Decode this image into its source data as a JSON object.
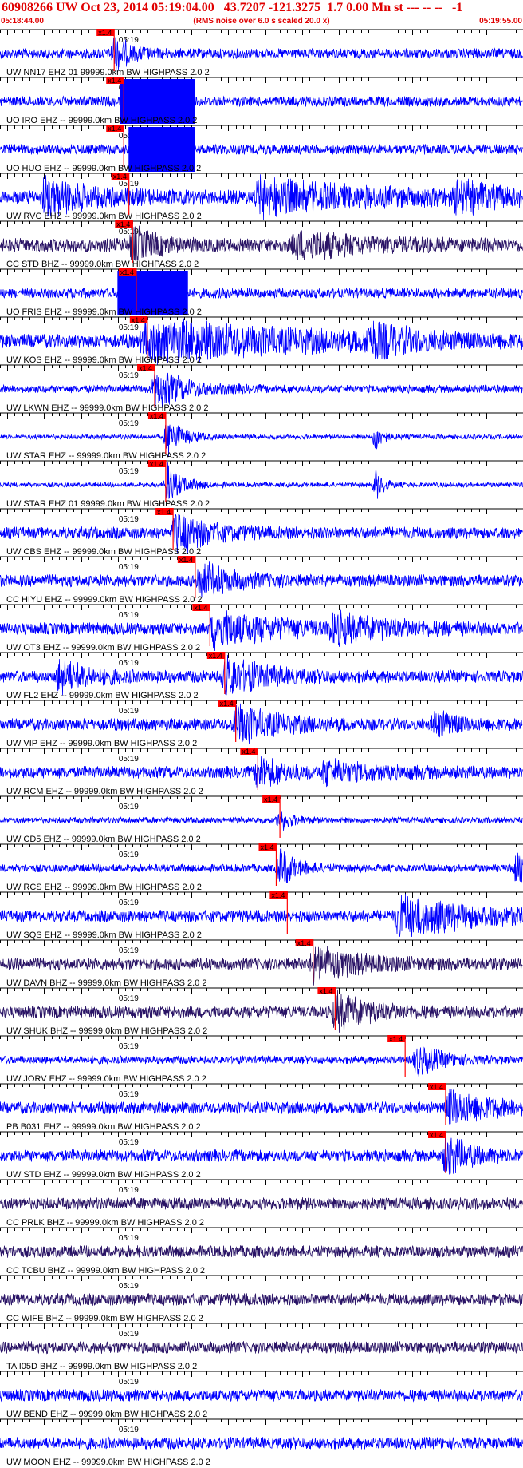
{
  "header": {
    "title": "60908266 UW Oct 23, 2014 05:19:04.00   43.7207 -121.3275  1.7 0.00 Mn st --- -- --   -1",
    "start_time": "05:18:44.00",
    "end_time": "05:19:55.00",
    "note": "(RMS noise over 6.0 s scaled 20.0 x)"
  },
  "chart_data": {
    "type": "seismogram-record-section",
    "time_axis": {
      "start": "05:18:44.00",
      "end": "05:19:55.00",
      "duration_s": 71,
      "minute_label": "05:19",
      "minute_offset_s": 16
    },
    "pick_label": "x1.4",
    "colors": {
      "trace": "#0000ff",
      "trace_dark": "#2a1466",
      "pick": "#ff0000",
      "grid": "#000000"
    },
    "traces": [
      {
        "label": "UW NN17 EHZ 01 99999.0km BW  HIGHPASS  2.0  2",
        "pick_s": 15.5,
        "color": "#0000ff",
        "noise": 0.25,
        "events": [
          [
            15.5,
            2,
            0.9
          ]
        ],
        "clipped": []
      },
      {
        "label": "UO IRO EHZ -- 99999.0km BW  HIGHPASS  2.0  2",
        "pick_s": 16.8,
        "color": "#0000ff",
        "noise": 0.25,
        "events": [],
        "clipped": [
          [
            16.3,
            26.5
          ]
        ]
      },
      {
        "label": "UO HUO EHZ -- 99999.0km BW  HIGHPASS  2.0  2",
        "pick_s": 16.8,
        "color": "#0000ff",
        "noise": 0.25,
        "events": [],
        "clipped": [
          [
            17.5,
            26.5
          ]
        ]
      },
      {
        "label": "UW RVC EHZ -- 99999.0km BW  HIGHPASS  2.0  2",
        "pick_s": 17.5,
        "color": "#0000ff",
        "noise": 0.35,
        "events": [
          [
            6,
            6,
            0.9
          ],
          [
            35,
            14,
            0.8
          ],
          [
            62,
            4,
            0.8
          ]
        ],
        "clipped": []
      },
      {
        "label": "CC STD BHZ -- 99999.0km BW  HIGHPASS  2.0  2",
        "pick_s": 18.0,
        "color": "#2a1466",
        "noise": 0.35,
        "events": [
          [
            18,
            3,
            0.8
          ],
          [
            40,
            8,
            0.6
          ]
        ],
        "clipped": []
      },
      {
        "label": "UO FRIS EHZ -- 99999.0km BW  HIGHPASS  2.0  2",
        "pick_s": 18.5,
        "color": "#0000ff",
        "noise": 0.25,
        "events": [],
        "clipped": [
          [
            16.0,
            25.5
          ]
        ]
      },
      {
        "label": "UW KOS EHZ -- 99999.0km BW  HIGHPASS  2.0  2",
        "pick_s": 20.0,
        "color": "#0000ff",
        "noise": 0.35,
        "events": [
          [
            19.5,
            20,
            1.0
          ],
          [
            50,
            4,
            0.9
          ]
        ],
        "clipped": []
      },
      {
        "label": "UW LKWN EHZ -- 99999.0km BW  HIGHPASS  2.0  2",
        "pick_s": 21.0,
        "color": "#0000ff",
        "noise": 0.2,
        "events": [
          [
            21,
            4,
            1.0
          ]
        ],
        "clipped": []
      },
      {
        "label": "UW STAR EHZ -- 99999.0km BW  HIGHPASS  2.0  2",
        "pick_s": 22.5,
        "color": "#0000ff",
        "noise": 0.12,
        "events": [
          [
            22.7,
            2,
            1.0
          ],
          [
            51,
            1,
            0.7
          ]
        ],
        "clipped": []
      },
      {
        "label": "UW STAR EHZ 01 99999.0km BW  HIGHPASS  2.0  2",
        "pick_s": 22.5,
        "color": "#0000ff",
        "noise": 0.12,
        "events": [
          [
            22.7,
            2,
            1.0
          ],
          [
            51,
            1,
            0.7
          ]
        ],
        "clipped": []
      },
      {
        "label": "UW CBS EHZ -- 99999.0km BW  HIGHPASS  2.0  2",
        "pick_s": 23.5,
        "color": "#0000ff",
        "noise": 0.3,
        "events": [
          [
            23.8,
            4,
            1.0
          ]
        ],
        "clipped": []
      },
      {
        "label": "CC HIYU EHZ -- 99999.0km BW  HIGHPASS  2.0  2",
        "pick_s": 26.5,
        "color": "#0000ff",
        "noise": 0.3,
        "events": [
          [
            27,
            4,
            0.9
          ]
        ],
        "clipped": []
      },
      {
        "label": "UW OT3 EHZ -- 99999.0km BW  HIGHPASS  2.0  2",
        "pick_s": 28.5,
        "color": "#0000ff",
        "noise": 0.3,
        "events": [
          [
            29,
            8,
            0.9
          ],
          [
            45,
            8,
            0.6
          ]
        ],
        "clipped": []
      },
      {
        "label": "UW FL2 EHZ -- 99999.0km BW  HIGHPASS  2.0  2",
        "pick_s": 30.5,
        "color": "#0000ff",
        "noise": 0.3,
        "events": [
          [
            8,
            4,
            0.8
          ],
          [
            30.5,
            5,
            1.0
          ]
        ],
        "clipped": []
      },
      {
        "label": "UW VIP EHZ -- 99999.0km BW  HIGHPASS  2.0  2",
        "pick_s": 32.0,
        "color": "#0000ff",
        "noise": 0.3,
        "events": [
          [
            32,
            5,
            1.0
          ],
          [
            59,
            3,
            0.6
          ]
        ],
        "clipped": []
      },
      {
        "label": "UW RCM EHZ -- 99999.0km BW  HIGHPASS  2.0  2",
        "pick_s": 35.0,
        "color": "#0000ff",
        "noise": 0.3,
        "events": [
          [
            35,
            3,
            0.8
          ],
          [
            44,
            6,
            0.5
          ]
        ],
        "clipped": []
      },
      {
        "label": "UW CD5 EHZ -- 99999.0km BW  HIGHPASS  2.0  2",
        "pick_s": 38.0,
        "color": "#0000ff",
        "noise": 0.15,
        "events": [
          [
            38,
            1.5,
            0.5
          ]
        ],
        "clipped": []
      },
      {
        "label": "UW RCS EHZ -- 99999.0km BW  HIGHPASS  2.0  2",
        "pick_s": 37.5,
        "color": "#0000ff",
        "noise": 0.2,
        "events": [
          [
            38,
            2,
            1.0
          ],
          [
            70,
            2,
            0.7
          ]
        ],
        "clipped": []
      },
      {
        "label": "UW SQS EHZ -- 99999.0km BW  HIGHPASS  2.0  2",
        "pick_s": 39.0,
        "color": "#0000ff",
        "noise": 0.3,
        "events": [
          [
            54,
            10,
            1.0
          ]
        ],
        "clipped": []
      },
      {
        "label": "UW DAVN BHZ -- 99999.0km BW  HIGHPASS  2.0  2",
        "pick_s": 42.5,
        "color": "#2a1466",
        "noise": 0.3,
        "events": [
          [
            42.5,
            6,
            0.8
          ]
        ],
        "clipped": []
      },
      {
        "label": "UW SHUK BHZ -- 99999.0km BW  HIGHPASS  2.0  2",
        "pick_s": 45.5,
        "color": "#2a1466",
        "noise": 0.3,
        "events": [
          [
            45.5,
            4,
            1.0
          ]
        ],
        "clipped": []
      },
      {
        "label": "UW JORV EHZ -- 99999.0km BW  HIGHPASS  2.0  2",
        "pick_s": 55.0,
        "color": "#0000ff",
        "noise": 0.2,
        "events": [
          [
            56.5,
            3,
            0.8
          ]
        ],
        "clipped": []
      },
      {
        "label": "PB B031 EHZ -- 99999.0km BW  HIGHPASS  2.0  2",
        "pick_s": 60.5,
        "color": "#0000ff",
        "noise": 0.3,
        "events": [
          [
            61,
            5,
            0.9
          ]
        ],
        "clipped": []
      },
      {
        "label": "UW STD EHZ -- 99999.0km BW  HIGHPASS  2.0  2",
        "pick_s": 60.5,
        "color": "#0000ff",
        "noise": 0.3,
        "events": [
          [
            60.5,
            3,
            1.0
          ]
        ],
        "clipped": []
      },
      {
        "label": "CC PRLK BHZ -- 99999.0km BW  HIGHPASS  2.0  2",
        "pick_s": null,
        "color": "#2a1466",
        "noise": 0.3,
        "events": [],
        "clipped": []
      },
      {
        "label": "CC TCBU BHZ -- 99999.0km BW  HIGHPASS  2.0  2",
        "pick_s": null,
        "color": "#2a1466",
        "noise": 0.3,
        "events": [],
        "clipped": []
      },
      {
        "label": "CC WIFE BHZ -- 99999.0km BW  HIGHPASS  2.0  2",
        "pick_s": null,
        "color": "#2a1466",
        "noise": 0.3,
        "events": [],
        "clipped": []
      },
      {
        "label": "TA I05D BHZ -- 99999.0km BW  HIGHPASS  2.0  2",
        "pick_s": null,
        "color": "#2a1466",
        "noise": 0.3,
        "events": [],
        "clipped": []
      },
      {
        "label": "UW BEND EHZ -- 99999.0km BW  HIGHPASS  2.0  2",
        "pick_s": null,
        "color": "#0000ff",
        "noise": 0.3,
        "events": [],
        "clipped": []
      },
      {
        "label": "UW MOON EHZ -- 99999.0km BW  HIGHPASS  2.0  2",
        "pick_s": null,
        "color": "#0000ff",
        "noise": 0.3,
        "events": [],
        "clipped": []
      }
    ]
  }
}
